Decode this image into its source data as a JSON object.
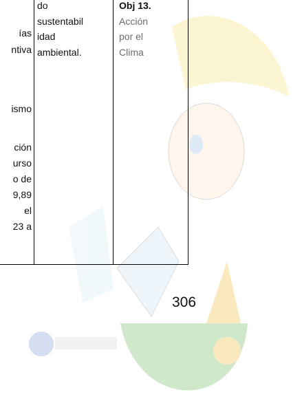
{
  "table": {
    "col1": [
      "ías",
      "ntiva",
      "ismo",
      "ción",
      "urso",
      "o de",
      "9,89",
      "el",
      "23 a"
    ],
    "col2": [
      "do",
      "sustentabil",
      "idad",
      "ambiental."
    ],
    "col3_heading": "Obj 13.",
    "col3": [
      "Acción",
      "por el",
      "Clima"
    ]
  },
  "page_number": "306"
}
